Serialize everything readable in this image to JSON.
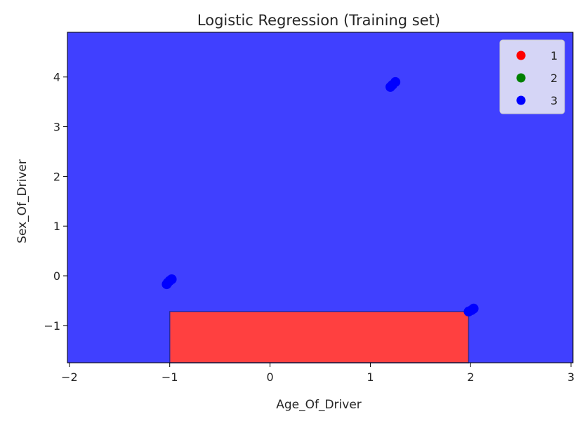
{
  "chart_data": {
    "type": "scatter",
    "title": "Logistic Regression (Training set)",
    "xlabel": "Age_Of_Driver",
    "ylabel": "Sex_Of_Driver",
    "xlim": [
      -2.02,
      3.02
    ],
    "ylim": [
      -1.75,
      4.9
    ],
    "x_ticks": [
      -2,
      -1,
      0,
      1,
      2,
      3
    ],
    "y_ticks": [
      -1,
      0,
      1,
      2,
      3,
      4
    ],
    "grid": false,
    "legend_position": "top-right",
    "legend": [
      {
        "label": "1",
        "color": "#ff0000"
      },
      {
        "label": "2",
        "color": "#008000"
      },
      {
        "label": "3",
        "color": "#0000ff"
      }
    ],
    "decision_regions": [
      {
        "class": "3",
        "color": "#4040ff",
        "x_range": [
          -2.02,
          3.02
        ],
        "y_range": [
          -1.75,
          4.9
        ]
      },
      {
        "class": "1",
        "color": "#ff4040",
        "x_range": [
          -1.0,
          1.98
        ],
        "y_range": [
          -1.75,
          -0.72
        ]
      }
    ],
    "series": [
      {
        "name": "3",
        "color": "#0000ff",
        "points": [
          {
            "x": -1.0,
            "y": -0.1
          },
          {
            "x": -0.98,
            "y": -0.07
          },
          {
            "x": -1.02,
            "y": -0.14
          },
          {
            "x": -1.03,
            "y": -0.17
          },
          {
            "x": 1.25,
            "y": 3.9
          },
          {
            "x": 1.22,
            "y": 3.84
          },
          {
            "x": 1.2,
            "y": 3.8
          },
          {
            "x": 2.03,
            "y": -0.66
          },
          {
            "x": 2.01,
            "y": -0.69
          },
          {
            "x": 1.98,
            "y": -0.72
          }
        ]
      }
    ]
  }
}
